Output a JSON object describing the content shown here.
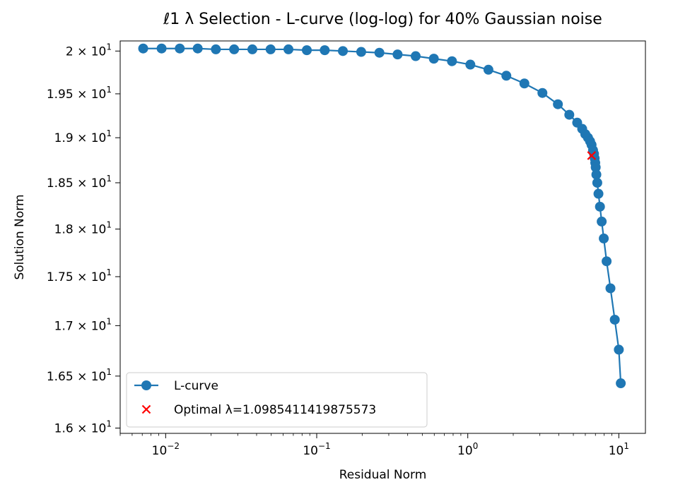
{
  "chart_data": {
    "type": "line",
    "title": "ℓ1 λ Selection - L-curve (log-log) for 40% Gaussian noise",
    "xlabel": "Residual Norm",
    "ylabel": "Solution Norm",
    "xscale": "log",
    "yscale": "log",
    "xlim": [
      0.005,
      15
    ],
    "ylim": [
      15.95,
      20.12
    ],
    "x_ticks": [
      {
        "value": 0.01,
        "base": "10",
        "exp": "−2"
      },
      {
        "value": 0.1,
        "base": "10",
        "exp": "−1"
      },
      {
        "value": 1,
        "base": "10",
        "exp": "0"
      },
      {
        "value": 10,
        "base": "10",
        "exp": "1"
      }
    ],
    "y_ticks": [
      {
        "value": 16.0,
        "mant": "1.6"
      },
      {
        "value": 16.5,
        "mant": "1.65"
      },
      {
        "value": 17.0,
        "mant": "1.7"
      },
      {
        "value": 17.5,
        "mant": "1.75"
      },
      {
        "value": 18.0,
        "mant": "1.8"
      },
      {
        "value": 18.5,
        "mant": "1.85"
      },
      {
        "value": 19.0,
        "mant": "1.9"
      },
      {
        "value": 19.5,
        "mant": "1.95"
      },
      {
        "value": 20.0,
        "mant": "2"
      }
    ],
    "y_tick_format": "× 10",
    "y_tick_exp": "1",
    "grid": false,
    "legend_position": "lower-left",
    "series": [
      {
        "name": "L-curve",
        "color": "#1f77b4",
        "marker": "circle",
        "x": [
          0.0071,
          0.0094,
          0.0124,
          0.0163,
          0.0215,
          0.0284,
          0.0375,
          0.0495,
          0.065,
          0.086,
          0.113,
          0.149,
          0.197,
          0.26,
          0.343,
          0.452,
          0.596,
          0.786,
          1.04,
          1.37,
          1.8,
          2.37,
          3.12,
          3.95,
          4.7,
          5.3,
          5.72,
          6.0,
          6.25,
          6.45,
          6.6,
          6.75,
          6.85,
          6.92,
          6.98,
          7.03,
          7.1,
          7.2,
          7.33,
          7.5,
          7.7,
          7.95,
          8.3,
          8.8,
          9.4,
          10.0,
          10.3
        ],
        "y": [
          20.03,
          20.03,
          20.03,
          20.03,
          20.02,
          20.02,
          20.02,
          20.02,
          20.02,
          20.01,
          20.01,
          20.0,
          19.99,
          19.98,
          19.96,
          19.94,
          19.91,
          19.88,
          19.84,
          19.78,
          19.71,
          19.62,
          19.51,
          19.38,
          19.26,
          19.17,
          19.1,
          19.04,
          19.0,
          18.96,
          18.92,
          18.86,
          18.82,
          18.77,
          18.72,
          18.67,
          18.59,
          18.5,
          18.38,
          18.24,
          18.08,
          17.9,
          17.66,
          17.38,
          17.06,
          16.76,
          16.43
        ]
      }
    ],
    "optimal": {
      "label": "Optimal λ=1.0985411419875573",
      "color": "#ff0000",
      "marker": "x",
      "x": 6.6,
      "y": 18.8
    }
  }
}
